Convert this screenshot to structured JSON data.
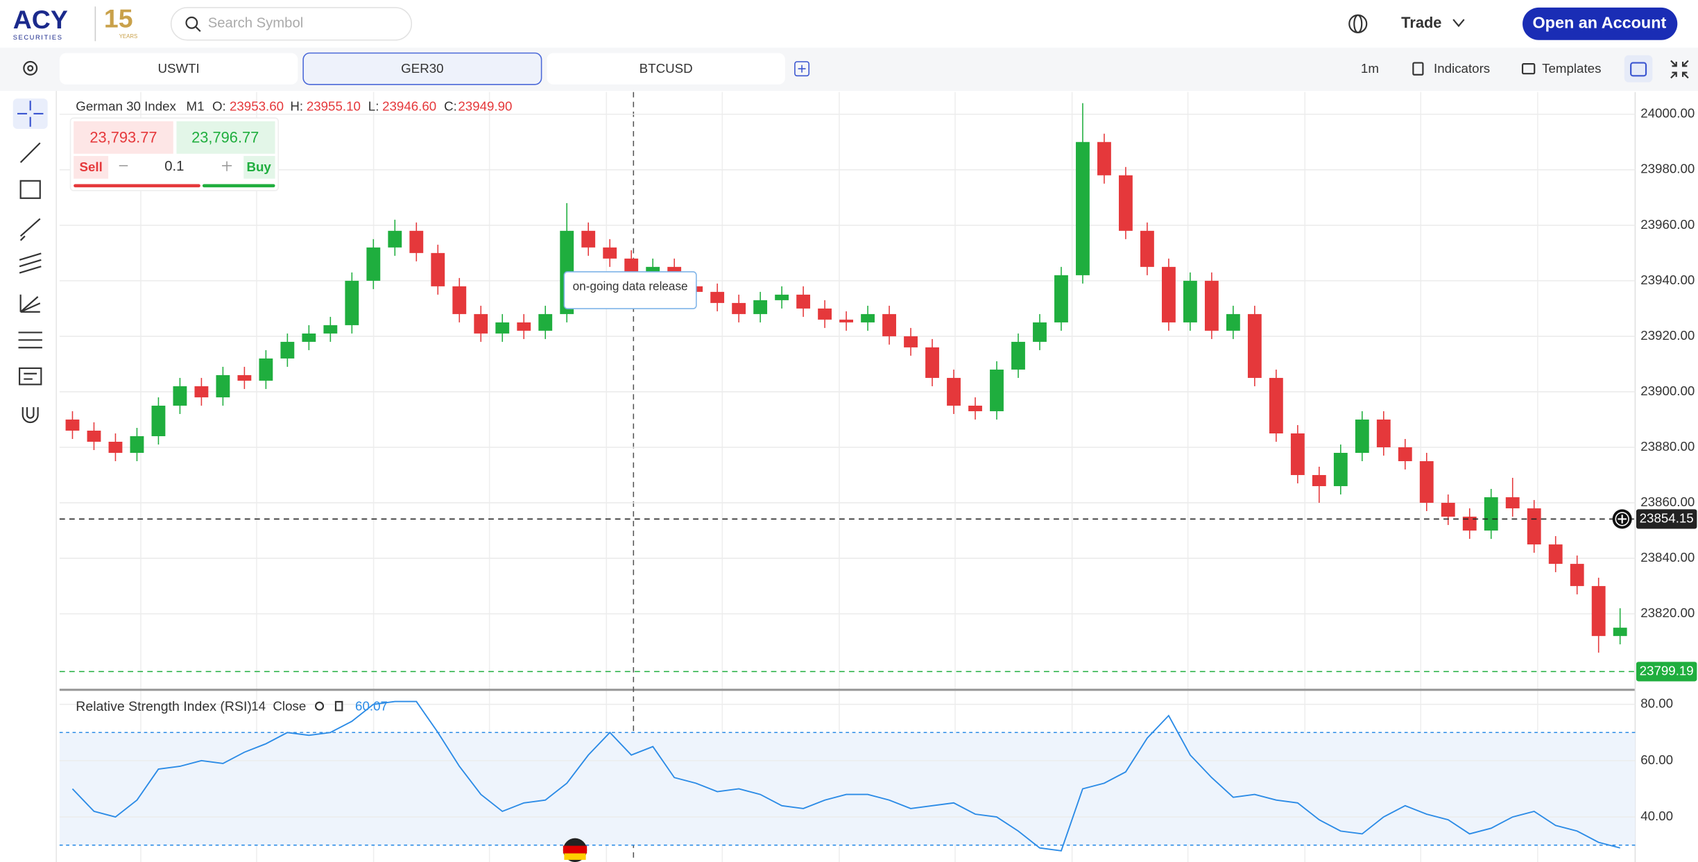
{
  "header": {
    "logo": "ACY",
    "logo_sub": "SECURITIES",
    "anniversary": "15",
    "anniversary_sub": "YEARS",
    "search_placeholder": "Search Symbol",
    "menu": "Trade",
    "cta": "Open an Account"
  },
  "tabs": [
    "USWTI",
    "GER30",
    "BTCUSD"
  ],
  "toolbar": {
    "timeframe": "1m",
    "indicators": "Indicators",
    "templates": "Templates"
  },
  "instrument": {
    "name": "German 30 Index",
    "interval": "M1",
    "open_label": "O:",
    "open": "23953.60",
    "high_label": "H:",
    "high": "23955.10",
    "low_label": "L:",
    "low": "23946.60",
    "close_label": "C:",
    "close": "23949.90"
  },
  "trade": {
    "sell_price": "23,793.77",
    "buy_price": "23,796.77",
    "sell": "Sell",
    "buy": "Buy",
    "quantity": "0.1"
  },
  "annotation": "on-going data release",
  "chart_data": [
    {
      "type": "candlestick",
      "up_color": "#1fae3e",
      "down_color": "#e5383b",
      "open": [
        23890,
        23886,
        23882,
        23878,
        23884,
        23895,
        23902,
        23898,
        23906,
        23904,
        23912,
        23918,
        23921,
        23924,
        23940,
        23952,
        23958,
        23950,
        23938,
        23928,
        23921,
        23925,
        23922,
        23928,
        23958,
        23952,
        23948,
        23942,
        23945,
        23938,
        23936,
        23932,
        23928,
        23933,
        23935,
        23930,
        23926,
        23925,
        23928,
        23920,
        23916,
        23905,
        23895,
        23893,
        23908,
        23918,
        23925,
        23942,
        23990,
        23978,
        23958,
        23945,
        23925,
        23940,
        23922,
        23928,
        23905,
        23885,
        23870,
        23866,
        23878,
        23890,
        23880,
        23875,
        23860,
        23855,
        23850,
        23862,
        23858,
        23845,
        23838,
        23830,
        23812
      ],
      "high": [
        23893,
        23889,
        23885,
        23887,
        23898,
        23905,
        23905,
        23909,
        23909,
        23915,
        23921,
        23924,
        23927,
        23943,
        23955,
        23962,
        23961,
        23953,
        23941,
        23931,
        23928,
        23928,
        23931,
        23968,
        23961,
        23955,
        23951,
        23948,
        23948,
        23941,
        23939,
        23935,
        23936,
        23938,
        23938,
        23933,
        23929,
        23931,
        23931,
        23923,
        23919,
        23908,
        23898,
        23911,
        23921,
        23928,
        23945,
        24004,
        23993,
        23981,
        23961,
        23948,
        23943,
        23943,
        23931,
        23931,
        23908,
        23888,
        23873,
        23881,
        23893,
        23893,
        23883,
        23878,
        23863,
        23858,
        23865,
        23869,
        23861,
        23848,
        23841,
        23833,
        23822
      ],
      "low": [
        23883,
        23879,
        23875,
        23875,
        23881,
        23892,
        23895,
        23895,
        23901,
        23901,
        23909,
        23915,
        23918,
        23921,
        23937,
        23949,
        23947,
        23935,
        23925,
        23918,
        23918,
        23919,
        23919,
        23925,
        23949,
        23945,
        23939,
        23939,
        23935,
        23933,
        23929,
        23925,
        23925,
        23930,
        23927,
        23923,
        23922,
        23922,
        23917,
        23913,
        23902,
        23892,
        23890,
        23890,
        23905,
        23915,
        23922,
        23939,
        23975,
        23955,
        23942,
        23922,
        23922,
        23919,
        23919,
        23902,
        23882,
        23867,
        23860,
        23863,
        23875,
        23877,
        23872,
        23857,
        23852,
        23847,
        23847,
        23855,
        23842,
        23835,
        23827,
        23806,
        23809
      ],
      "close": [
        23886,
        23882,
        23878,
        23884,
        23895,
        23902,
        23898,
        23906,
        23904,
        23912,
        23918,
        23921,
        23924,
        23940,
        23952,
        23958,
        23950,
        23938,
        23928,
        23921,
        23925,
        23922,
        23928,
        23958,
        23952,
        23948,
        23942,
        23945,
        23938,
        23936,
        23932,
        23928,
        23933,
        23935,
        23930,
        23926,
        23925,
        23928,
        23920,
        23916,
        23905,
        23895,
        23893,
        23908,
        23918,
        23925,
        23942,
        23990,
        23978,
        23958,
        23945,
        23925,
        23940,
        23922,
        23928,
        23905,
        23885,
        23870,
        23866,
        23878,
        23890,
        23880,
        23875,
        23860,
        23855,
        23850,
        23862,
        23858,
        23845,
        23838,
        23830,
        23812,
        23815
      ],
      "ylim": [
        23793,
        24008
      ],
      "yticks": [
        {
          "value": 23820,
          "label": "23820.00"
        },
        {
          "value": 23840,
          "label": "23840.00"
        },
        {
          "value": 23860,
          "label": "23860.00"
        },
        {
          "value": 23880,
          "label": "23880.00"
        },
        {
          "value": 23900,
          "label": "23900.00"
        },
        {
          "value": 23920,
          "label": "23920.00"
        },
        {
          "value": 23940,
          "label": "23940.00"
        },
        {
          "value": 23960,
          "label": "23960.00"
        },
        {
          "value": 23980,
          "label": "23980.00"
        },
        {
          "value": 24000,
          "label": "24000.00"
        }
      ],
      "grid": true,
      "price_lines": [
        {
          "value": 23854.15,
          "color": "#222222"
        },
        {
          "value": 23799.19,
          "color": "#1fae3e"
        }
      ]
    },
    {
      "type": "line",
      "title": "Relative Strength Index (RSI)",
      "period": "14",
      "source": "Close",
      "current": "60.07",
      "color": "#2b8be6",
      "values": [
        50,
        42,
        40,
        46,
        57,
        58,
        60,
        59,
        63,
        66,
        70,
        69,
        70,
        74,
        80,
        81,
        81,
        70,
        58,
        48,
        42,
        45,
        46,
        52,
        62,
        70,
        62,
        65,
        54,
        52,
        49,
        50,
        48,
        44,
        43,
        46,
        48,
        48,
        46,
        43,
        44,
        45,
        41,
        40,
        35,
        29,
        28,
        50,
        52,
        56,
        68,
        76,
        62,
        54,
        47,
        48,
        46,
        45,
        39,
        35,
        34,
        40,
        44,
        41,
        39,
        34,
        36,
        40,
        42,
        37,
        35,
        31,
        29
      ],
      "ylim": [
        24,
        84
      ],
      "yticks": [
        {
          "value": 40,
          "label": "40.00"
        },
        {
          "value": 60,
          "label": "60.00"
        },
        {
          "value": 80,
          "label": "80.00"
        }
      ],
      "bands": [
        30,
        70
      ],
      "band_fill": "#eef4fc"
    }
  ]
}
